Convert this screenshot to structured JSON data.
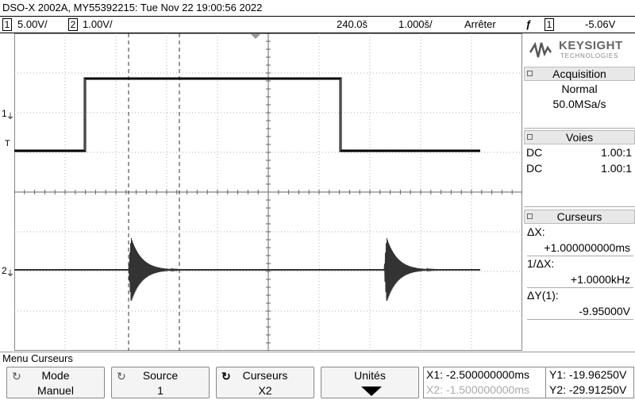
{
  "title": "DSO-X 2002A, MY55392215: Tue Nov 22 19:00:56 2022",
  "status": {
    "ch1_num": "1",
    "ch1_scale": "5.00V/",
    "ch2_num": "2",
    "ch2_scale": "1.00V/",
    "time_delay": "240.0š",
    "time_scale": "1.000š/",
    "run_state": "Arrêter",
    "trigger_icon": "ƒ",
    "trigger_channel": "1",
    "trigger_level": "-5.06V"
  },
  "logo": {
    "brand": "KEYSIGHT",
    "sub": "TECHNOLOGIES"
  },
  "side": {
    "acq_title": "Acquisition",
    "acq_mode": "Normal",
    "acq_rate": "50.0MSa/s",
    "voies_title": "Voies",
    "voies": [
      {
        "coupling": "DC",
        "ratio": "1.00:1"
      },
      {
        "coupling": "DC",
        "ratio": "1.00:1"
      }
    ],
    "cursors_title": "Curseurs",
    "dx_label": "ΔX:",
    "dx_value": "+1.000000000ms",
    "inv_dx_label": "1/ΔX:",
    "inv_dx_value": "+1.0000kHz",
    "dy_label": "ΔY(1):",
    "dy_value": "-9.95000V"
  },
  "screen": {
    "ch1_marker": "1",
    "ch2_marker": "2",
    "trigger_marker": "T",
    "ch1_color": "#000000",
    "ch2_color": "#333333"
  },
  "menu": {
    "title": "Menu Curseurs",
    "mode_label": "Mode",
    "mode_value": "Manuel",
    "source_label": "Source",
    "source_value": "1",
    "cursors_label": "Curseurs",
    "cursors_value": "X2",
    "units_label": "Unités"
  },
  "readouts": {
    "x1": "X1: -2.500000000ms",
    "x2": "X2: -1.500000000ms",
    "y1": "Y1: -19.96250V",
    "y2": "Y2: -29.91250V"
  }
}
